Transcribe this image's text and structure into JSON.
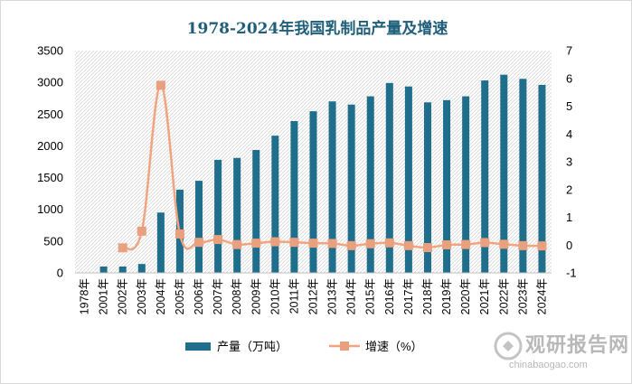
{
  "chart_data": {
    "type": "bar",
    "title": "1978-2024年我国乳制品产量及增速",
    "categories": [
      "1978年",
      "2001年",
      "2002年",
      "2003年",
      "2004年",
      "2005年",
      "2006年",
      "2007年",
      "2008年",
      "2009年",
      "2010年",
      "2011年",
      "2012年",
      "2013年",
      "2014年",
      "2015年",
      "2016年",
      "2017年",
      "2018年",
      "2019年",
      "2020年",
      "2021年",
      "2022年",
      "2023年",
      "2024年"
    ],
    "series": [
      {
        "name": "产量（万吨）",
        "type": "bar",
        "axis": "left",
        "color": "#1f6e8c",
        "values": [
          5,
          100,
          100,
          140,
          950,
          1310,
          1450,
          1780,
          1810,
          1935,
          2160,
          2390,
          2545,
          2700,
          2650,
          2780,
          2990,
          2935,
          2685,
          2720,
          2780,
          3030,
          3120,
          3055,
          2960
        ]
      },
      {
        "name": "增速（%）",
        "type": "line",
        "axis": "right",
        "color": "#f2a481",
        "values": [
          null,
          null,
          -0.1,
          0.5,
          5.75,
          0.4,
          0.1,
          0.2,
          0.02,
          0.07,
          0.12,
          0.1,
          0.07,
          0.06,
          -0.02,
          0.05,
          0.08,
          -0.02,
          -0.09,
          0.01,
          0.02,
          0.09,
          0.03,
          -0.02,
          -0.03
        ]
      }
    ],
    "y_left": {
      "min": 0,
      "max": 3500,
      "ticks": [
        0,
        500,
        1000,
        1500,
        2000,
        2500,
        3000,
        3500
      ]
    },
    "y_right": {
      "min": -1,
      "max": 7,
      "ticks": [
        -1,
        0,
        1,
        2,
        3,
        4,
        5,
        6,
        7
      ]
    },
    "grid": false,
    "legend": "bottom"
  },
  "legend": {
    "bar_label": "产量（万吨）",
    "line_label": "增速（%）"
  },
  "watermark": {
    "cn": "观研报告网",
    "en": "chinabaogao.com"
  }
}
